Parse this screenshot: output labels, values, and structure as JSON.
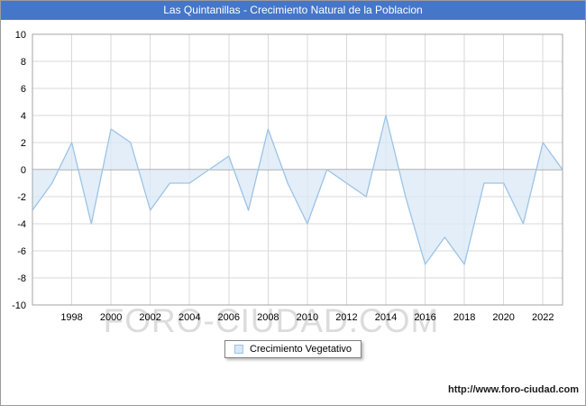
{
  "title": "Las Quintanillas - Crecimiento Natural de la Poblacion",
  "watermark": "FORO-CIUDAD.COM",
  "legend": {
    "label": "Crecimiento Vegetativo"
  },
  "footer": {
    "url": "http://www.foro-ciudad.com"
  },
  "colors": {
    "title_bar": "#4576c8",
    "title_text": "#ffffff",
    "area_fill": "#d9e8f7",
    "area_stroke": "#9cc3e5",
    "grid": "#d9d9d9",
    "axis": "#a6a6a6",
    "zero_line": "#8a8a8a",
    "watermark": "#dcdcdc",
    "footer_text": "#1a1a1a"
  },
  "chart_data": {
    "type": "area",
    "title": "Las Quintanillas - Crecimiento Natural de la Poblacion",
    "xlabel": "",
    "ylabel": "",
    "x": [
      1996,
      1997,
      1998,
      1999,
      2000,
      2001,
      2002,
      2003,
      2004,
      2005,
      2006,
      2007,
      2008,
      2009,
      2010,
      2011,
      2012,
      2013,
      2014,
      2015,
      2016,
      2017,
      2018,
      2019,
      2020,
      2021,
      2022,
      2023
    ],
    "series": [
      {
        "name": "Crecimiento Vegetativo",
        "values": [
          -3,
          -1,
          2,
          -4,
          3,
          2,
          -3,
          -1,
          -1,
          0,
          1,
          -3,
          3,
          -1,
          -4,
          0,
          -1,
          -2,
          4,
          -2,
          -7,
          -5,
          -7,
          -1,
          -1,
          -4,
          2,
          0
        ]
      }
    ],
    "ylim": [
      -10,
      10
    ],
    "ytick_step": 2,
    "xticks": [
      1998,
      2000,
      2002,
      2004,
      2006,
      2008,
      2010,
      2012,
      2014,
      2016,
      2018,
      2020,
      2022
    ],
    "grid": true,
    "legend_position": "bottom"
  }
}
